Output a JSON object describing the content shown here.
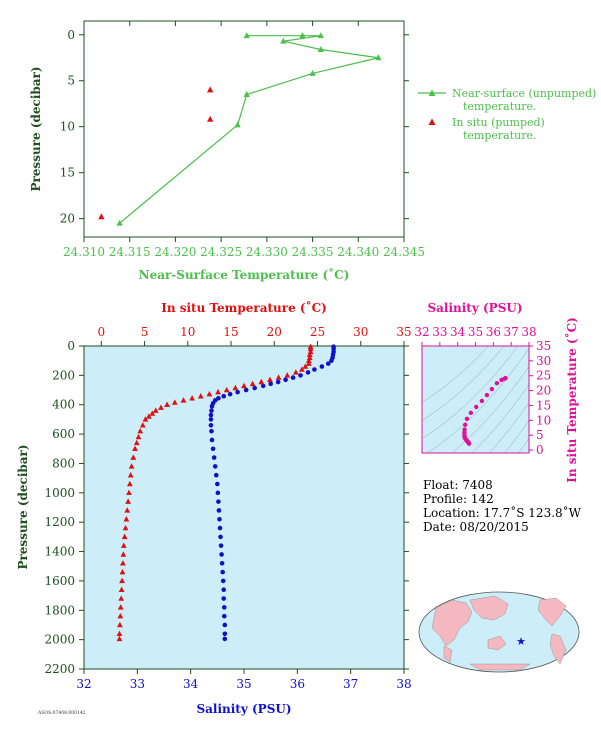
{
  "colors": {
    "axis_dark": "#1f4e1f",
    "near_surface": "#4cbf4c",
    "in_situ": "#e01010",
    "salinity": "#1010c8",
    "ts_magenta": "#e0109a",
    "panel_bg": "#cdeef8",
    "land": "#f4b8c0"
  },
  "chart_data": [
    {
      "id": "near_surface",
      "type": "line",
      "xlabel": "Near-Surface Temperature (˚C)",
      "ylabel": "Pressure (decibar)",
      "xlim": [
        24.31,
        24.345
      ],
      "ylim": [
        22,
        -1.5
      ],
      "xticks": [
        "24.310",
        "24.315",
        "24.320",
        "24.325",
        "24.330",
        "24.335",
        "24.340",
        "24.345"
      ],
      "yticks": [
        "0",
        "5",
        "10",
        "15",
        "20"
      ],
      "legend": [
        {
          "label": "Near-surface (unpumped)",
          "label2": "temperature."
        },
        {
          "label": "In situ (pumped)",
          "label2": "temperature."
        }
      ],
      "series": [
        {
          "name": "Near-surface (unpumped) temperature.",
          "marker": "triangle-line",
          "points": [
            [
              24.3278,
              0.1
            ],
            [
              24.3339,
              0.1
            ],
            [
              24.3359,
              0.1
            ],
            [
              24.3318,
              0.7
            ],
            [
              24.3359,
              1.6
            ],
            [
              24.3422,
              2.5
            ],
            [
              24.335,
              4.2
            ],
            [
              24.3278,
              6.5
            ],
            [
              24.3268,
              9.8
            ],
            [
              24.3139,
              20.5
            ]
          ]
        },
        {
          "name": "In situ (pumped) temperature.",
          "marker": "triangle",
          "points": [
            [
              24.3238,
              6.0
            ],
            [
              24.3238,
              9.2
            ],
            [
              24.3119,
              19.8
            ]
          ]
        }
      ]
    },
    {
      "id": "profile",
      "type": "scatter",
      "top_xlabel": "In situ Temperature (˚C)",
      "bottom_xlabel": "Salinity (PSU)",
      "ylabel": "Pressure (decibar)",
      "temp_lim": [
        -2,
        35
      ],
      "sal_lim": [
        32,
        38
      ],
      "ylim": [
        2200,
        0
      ],
      "temp_ticks": [
        "0",
        "5",
        "10",
        "15",
        "20",
        "25",
        "30",
        "35"
      ],
      "sal_ticks": [
        "32",
        "33",
        "34",
        "35",
        "36",
        "37",
        "38"
      ],
      "yticks": [
        "0",
        "200",
        "400",
        "600",
        "800",
        "1000",
        "1200",
        "1400",
        "1600",
        "1800",
        "2000",
        "2200"
      ],
      "temperature": [
        [
          24.2,
          5
        ],
        [
          24.2,
          20
        ],
        [
          24.2,
          40
        ],
        [
          24.1,
          60
        ],
        [
          24.1,
          80
        ],
        [
          24.0,
          100
        ],
        [
          24.0,
          120
        ],
        [
          23.6,
          140
        ],
        [
          23.2,
          160
        ],
        [
          22.5,
          180
        ],
        [
          21.5,
          200
        ],
        [
          20.5,
          215
        ],
        [
          19.5,
          230
        ],
        [
          18.5,
          245
        ],
        [
          17.5,
          258
        ],
        [
          16.5,
          272
        ],
        [
          15.5,
          286
        ],
        [
          14.5,
          300
        ],
        [
          13.5,
          314
        ],
        [
          12.5,
          328
        ],
        [
          11.5,
          342
        ],
        [
          10.5,
          356
        ],
        [
          9.5,
          370
        ],
        [
          8.5,
          385
        ],
        [
          7.6,
          400
        ],
        [
          6.9,
          420
        ],
        [
          6.3,
          440
        ],
        [
          5.9,
          460
        ],
        [
          5.5,
          480
        ],
        [
          5.1,
          500
        ],
        [
          4.8,
          540
        ],
        [
          4.5,
          580
        ],
        [
          4.3,
          620
        ],
        [
          4.1,
          660
        ],
        [
          3.9,
          700
        ],
        [
          3.7,
          760
        ],
        [
          3.5,
          820
        ],
        [
          3.4,
          880
        ],
        [
          3.3,
          940
        ],
        [
          3.2,
          1000
        ],
        [
          3.1,
          1060
        ],
        [
          3.0,
          1120
        ],
        [
          2.9,
          1180
        ],
        [
          2.8,
          1240
        ],
        [
          2.7,
          1300
        ],
        [
          2.6,
          1360
        ],
        [
          2.55,
          1420
        ],
        [
          2.5,
          1480
        ],
        [
          2.45,
          1540
        ],
        [
          2.4,
          1600
        ],
        [
          2.35,
          1660
        ],
        [
          2.3,
          1720
        ],
        [
          2.25,
          1780
        ],
        [
          2.2,
          1840
        ],
        [
          2.15,
          1900
        ],
        [
          2.1,
          1960
        ],
        [
          2.1,
          1995
        ]
      ],
      "salinity": [
        [
          36.68,
          5
        ],
        [
          36.68,
          20
        ],
        [
          36.68,
          40
        ],
        [
          36.67,
          60
        ],
        [
          36.66,
          80
        ],
        [
          36.64,
          100
        ],
        [
          36.58,
          120
        ],
        [
          36.46,
          140
        ],
        [
          36.32,
          160
        ],
        [
          36.2,
          180
        ],
        [
          36.06,
          200
        ],
        [
          35.92,
          215
        ],
        [
          35.78,
          230
        ],
        [
          35.64,
          245
        ],
        [
          35.5,
          258
        ],
        [
          35.36,
          272
        ],
        [
          35.2,
          286
        ],
        [
          35.04,
          300
        ],
        [
          34.88,
          314
        ],
        [
          34.74,
          328
        ],
        [
          34.62,
          342
        ],
        [
          34.52,
          356
        ],
        [
          34.46,
          370
        ],
        [
          34.42,
          390
        ],
        [
          34.4,
          410
        ],
        [
          34.39,
          440
        ],
        [
          34.38,
          470
        ],
        [
          34.38,
          500
        ],
        [
          34.38,
          540
        ],
        [
          34.39,
          580
        ],
        [
          34.4,
          640
        ],
        [
          34.42,
          700
        ],
        [
          34.44,
          760
        ],
        [
          34.46,
          820
        ],
        [
          34.48,
          880
        ],
        [
          34.5,
          940
        ],
        [
          34.51,
          1000
        ],
        [
          34.52,
          1060
        ],
        [
          34.53,
          1120
        ],
        [
          34.54,
          1180
        ],
        [
          34.55,
          1240
        ],
        [
          34.56,
          1300
        ],
        [
          34.57,
          1360
        ],
        [
          34.58,
          1420
        ],
        [
          34.59,
          1480
        ],
        [
          34.6,
          1540
        ],
        [
          34.61,
          1600
        ],
        [
          34.62,
          1660
        ],
        [
          34.62,
          1720
        ],
        [
          34.63,
          1780
        ],
        [
          34.63,
          1840
        ],
        [
          34.64,
          1900
        ],
        [
          34.64,
          1960
        ],
        [
          34.64,
          1995
        ]
      ]
    },
    {
      "id": "ts_diagram",
      "type": "scatter",
      "top_xlabel": "Salinity (PSU)",
      "right_ylabel": "In situ Temperature (˚C)",
      "sal_lim": [
        32,
        38
      ],
      "temp_lim": [
        -1,
        35
      ],
      "sal_ticks": [
        "32",
        "33",
        "34",
        "35",
        "36",
        "37",
        "38"
      ],
      "temp_ticks": [
        "0",
        "5",
        "10",
        "15",
        "20",
        "25",
        "30",
        "35"
      ],
      "points": [
        [
          36.68,
          24.2
        ],
        [
          36.64,
          24.0
        ],
        [
          36.46,
          23.6
        ],
        [
          36.2,
          22.5
        ],
        [
          35.92,
          20.5
        ],
        [
          35.64,
          18.5
        ],
        [
          35.36,
          16.5
        ],
        [
          35.04,
          14.5
        ],
        [
          34.74,
          12.5
        ],
        [
          34.52,
          10.5
        ],
        [
          34.42,
          8.5
        ],
        [
          34.39,
          6.9
        ],
        [
          34.38,
          5.9
        ],
        [
          34.38,
          5.1
        ],
        [
          34.39,
          4.5
        ],
        [
          34.4,
          4.1
        ],
        [
          34.44,
          3.7
        ],
        [
          34.48,
          3.4
        ],
        [
          34.51,
          3.2
        ],
        [
          34.54,
          3.0
        ],
        [
          34.57,
          2.8
        ],
        [
          34.59,
          2.6
        ],
        [
          34.61,
          2.45
        ],
        [
          34.63,
          2.3
        ],
        [
          34.64,
          2.15
        ]
      ]
    }
  ],
  "info": {
    "float": "Float:  7408",
    "profile": "Profile:  142",
    "location": "Location:  17.7˚S  123.8˚W",
    "date": "Date:  08/20/2015"
  },
  "footer_code": "ASOS:07408.000142"
}
